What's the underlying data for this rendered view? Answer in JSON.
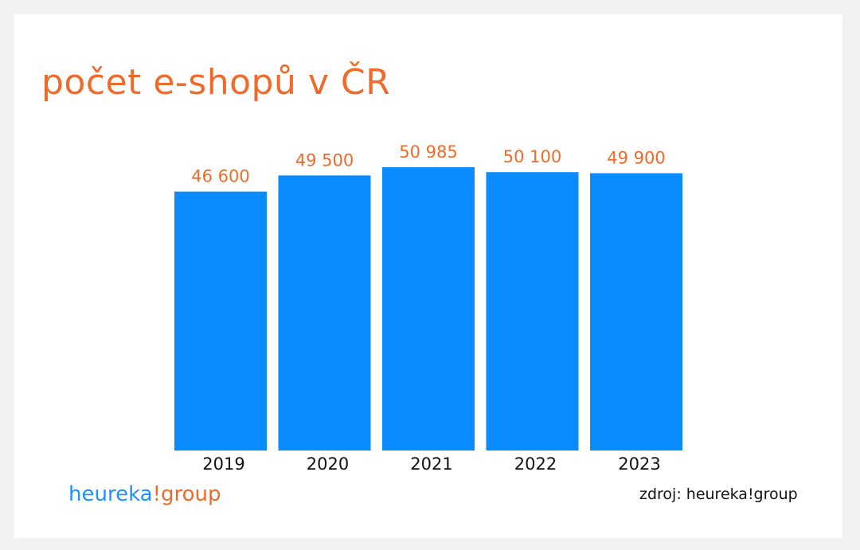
{
  "title": "počet e-shopů v ČR",
  "colors": {
    "bar": "#0a8cff",
    "value_label": "#f26a2a",
    "title": "#f26a2a",
    "logo_primary": "#1e90ff",
    "logo_accent": "#f26a2a"
  },
  "chart_data": {
    "type": "bar",
    "title": "počet e-shopů v ČR",
    "categories": [
      "2019",
      "2020",
      "2021",
      "2022",
      "2023"
    ],
    "values": [
      46600,
      49500,
      50985,
      50100,
      49900
    ],
    "value_labels": [
      "46 600",
      "49 500",
      "50 985",
      "50 100",
      "49 900"
    ],
    "xlabel": "",
    "ylabel": "",
    "ylim": [
      0,
      54000
    ],
    "grid": false,
    "legend": "none"
  },
  "logo": {
    "part1": "heureka",
    "part2": "!group"
  },
  "source": "zdroj: heureka!group"
}
